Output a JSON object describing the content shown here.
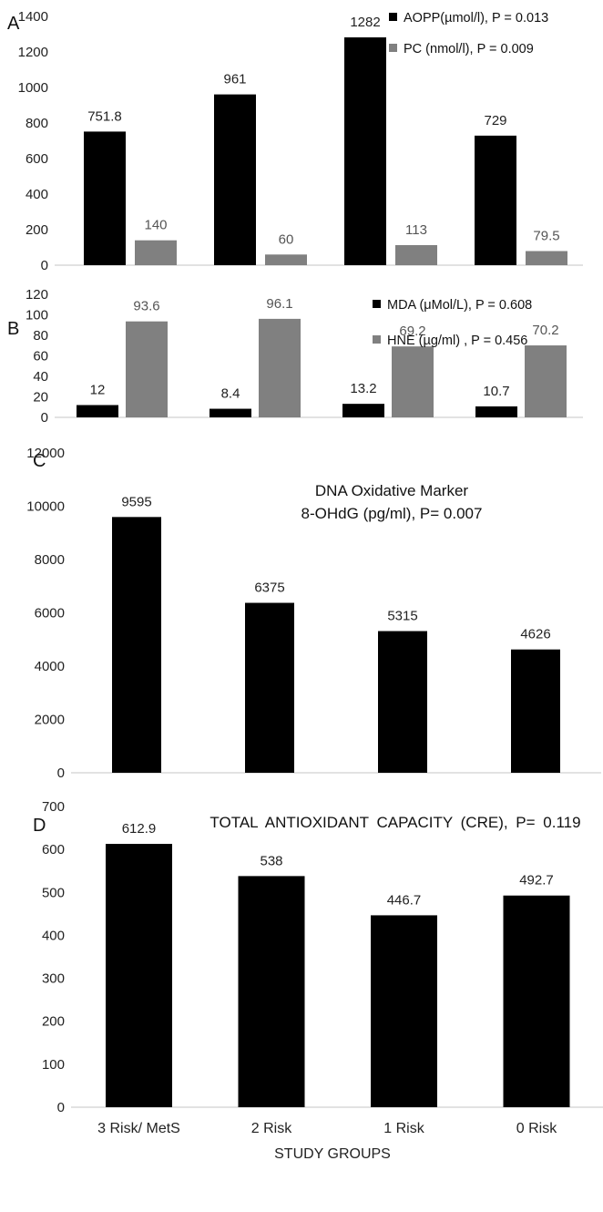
{
  "colors": {
    "primary": "#000000",
    "secondary": "#808080"
  },
  "x_axis_title": "STUDY GROUPS",
  "categories": [
    "3 Risk/ MetS",
    "2 Risk",
    "1 Risk",
    "0 Risk"
  ],
  "chart_data": [
    {
      "type": "bar",
      "panel": "A",
      "categories": [
        "3 Risk/ MetS",
        "2 Risk",
        "1 Risk",
        "0 Risk"
      ],
      "series": [
        {
          "name": "AOPP(µmol/l), P = 0.013",
          "values": [
            751.8,
            961,
            1282,
            729
          ],
          "labels": [
            "751.8",
            "961",
            "1282",
            "729"
          ]
        },
        {
          "name": "PC (nmol/l), P = 0.009",
          "values": [
            140,
            60,
            113,
            79.5
          ],
          "labels": [
            "140",
            "60",
            "113",
            "79.5"
          ]
        }
      ],
      "ylim": [
        0,
        1400
      ],
      "yticks": [
        0,
        200,
        400,
        600,
        800,
        1000,
        1200,
        1400
      ],
      "legend": "top-right"
    },
    {
      "type": "bar",
      "panel": "B",
      "categories": [
        "3 Risk/ MetS",
        "2 Risk",
        "1 Risk",
        "0 Risk"
      ],
      "series": [
        {
          "name": "MDA (μMol/L), P = 0.608",
          "values": [
            12,
            8.4,
            13.2,
            10.7
          ],
          "labels": [
            "12",
            "8.4",
            "13.2",
            "10.7"
          ]
        },
        {
          "name": "HNE (µg/ml) , P = 0.456",
          "values": [
            93.6,
            96.1,
            69.2,
            70.2
          ],
          "labels": [
            "93.6",
            "96.1",
            "69.2",
            "70.2"
          ]
        }
      ],
      "ylim": [
        0,
        120
      ],
      "yticks": [
        0,
        20,
        40,
        60,
        80,
        100,
        120
      ],
      "legend": "top-right"
    },
    {
      "type": "bar",
      "panel": "C",
      "title_lines": [
        "DNA Oxidative Marker",
        "8-OHdG (pg/ml), P= 0.007"
      ],
      "categories": [
        "3 Risk/ MetS",
        "2 Risk",
        "1 Risk",
        "0 Risk"
      ],
      "series": [
        {
          "values": [
            9595,
            6375,
            5315,
            4626
          ],
          "labels": [
            "9595",
            "6375",
            "5315",
            "4626"
          ]
        }
      ],
      "ylim": [
        0,
        12000
      ],
      "yticks": [
        0,
        2000,
        4000,
        6000,
        8000,
        10000,
        12000
      ]
    },
    {
      "type": "bar",
      "panel": "D",
      "title_lines": [
        "TOTAL ANTIOXIDANT CAPACITY (CRE), P= 0.119"
      ],
      "categories": [
        "3 Risk/ MetS",
        "2 Risk",
        "1 Risk",
        "0 Risk"
      ],
      "series": [
        {
          "values": [
            612.9,
            538,
            446.7,
            492.7
          ],
          "labels": [
            "612.9",
            "538",
            "446.7",
            "492.7"
          ]
        }
      ],
      "ylim": [
        0,
        700
      ],
      "yticks": [
        0,
        100,
        200,
        300,
        400,
        500,
        600,
        700
      ],
      "xlabel": "STUDY GROUPS"
    }
  ]
}
